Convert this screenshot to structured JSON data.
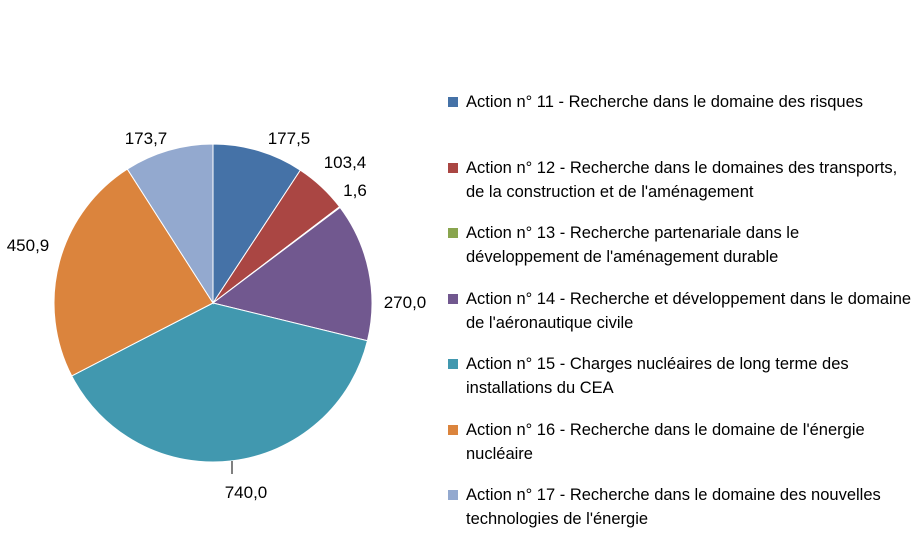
{
  "chart_data": {
    "type": "pie",
    "series": [
      {
        "label": "Action n° 11 - Recherche dans le domaine des risques",
        "value": 177.5,
        "display": "177,5",
        "color": "#4572A7"
      },
      {
        "label": "Action n° 12 - Recherche dans le domaines des transports, de la construction et de l'aménagement",
        "value": 103.4,
        "display": "103,4",
        "color": "#AA4643"
      },
      {
        "label": "Action n° 13 - Recherche partenariale dans le développement de l'aménagement durable",
        "value": 1.6,
        "display": "1,6",
        "color": "#89A54E"
      },
      {
        "label": "Action n° 14 - Recherche et développement dans le domaine de l'aéronautique civile",
        "value": 270.0,
        "display": "270,0",
        "color": "#71588F"
      },
      {
        "label": "Action n° 15 - Charges nucléaires de long terme des installations du CEA",
        "value": 740.0,
        "display": "740,0",
        "color": "#4198AF"
      },
      {
        "label": "Action n° 16 - Recherche dans le domaine de l'énergie nucléaire",
        "value": 450.9,
        "display": "450,9",
        "color": "#DB843D"
      },
      {
        "label": "Action n° 17 - Recherche dans le domaine des nouvelles technologies de l'énergie",
        "value": 173.7,
        "display": "173,7",
        "color": "#93A9CF"
      }
    ],
    "legend_position": "right"
  }
}
